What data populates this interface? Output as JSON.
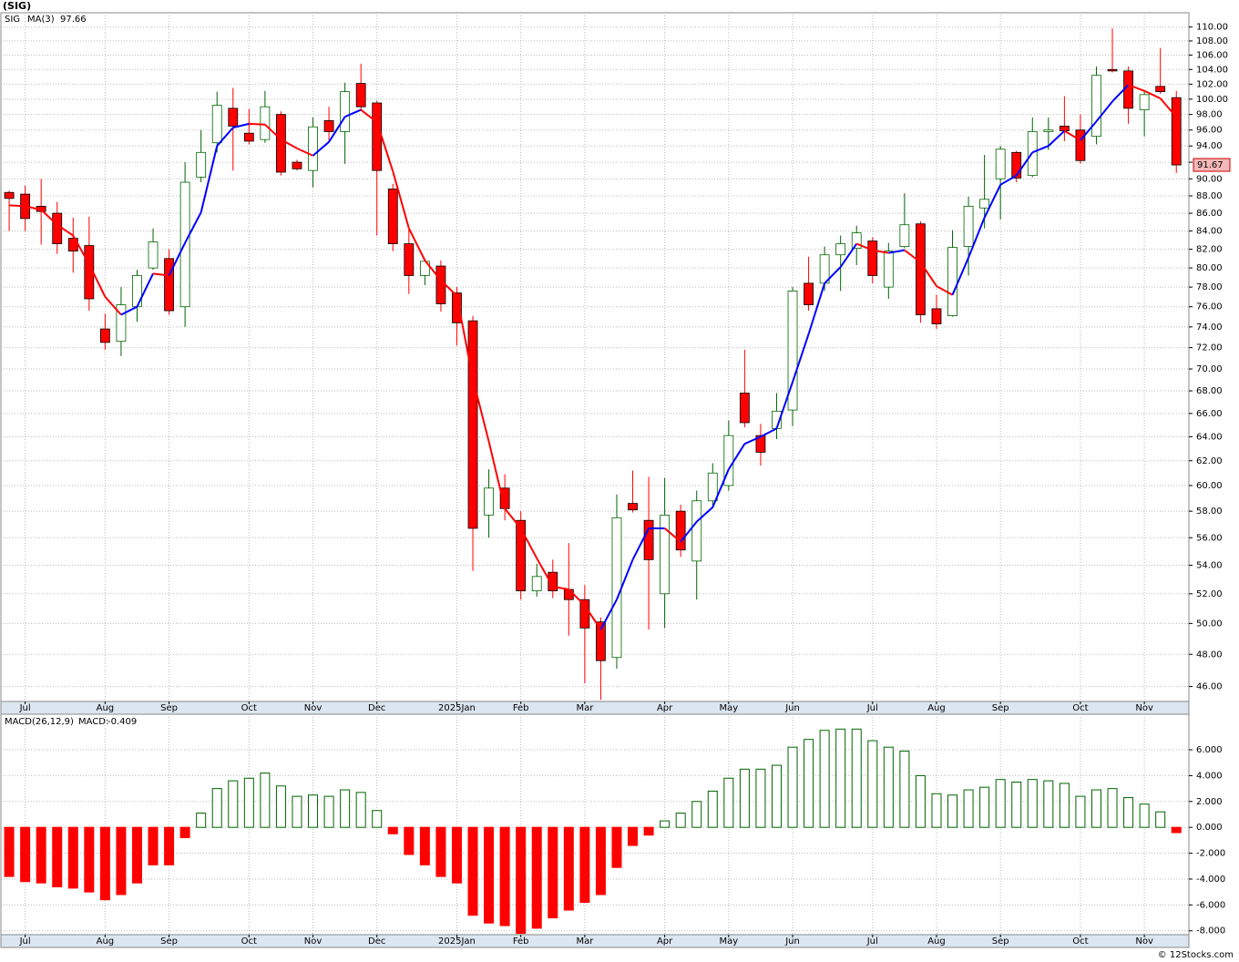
{
  "chart_data": [
    {
      "type": "candlestick",
      "title": "(SIG)",
      "log_scale": true,
      "grid": true,
      "categories": [
        null,
        "Jul",
        null,
        null,
        null,
        null,
        "Aug",
        null,
        null,
        null,
        "Sep",
        null,
        null,
        null,
        null,
        "Oct",
        null,
        null,
        null,
        "Nov",
        null,
        null,
        null,
        "Dec",
        null,
        null,
        null,
        null,
        "2025Jan",
        null,
        null,
        null,
        "Feb",
        null,
        null,
        null,
        "Mar",
        null,
        null,
        null,
        null,
        "Apr",
        null,
        null,
        null,
        "May",
        null,
        null,
        null,
        "Jun",
        null,
        null,
        null,
        null,
        "Jul",
        null,
        null,
        null,
        "Aug",
        null,
        null,
        null,
        "Sep",
        null,
        null,
        null,
        null,
        "Oct",
        null,
        null,
        null,
        "Nov",
        null,
        null
      ],
      "series": [
        {
          "name": "SIG",
          "up_color": "#006400",
          "down_color": "#ff0000",
          "open": [
            88.4,
            88.2,
            86.8,
            86,
            83.2,
            82.4,
            73.8,
            72.6,
            76,
            80,
            81,
            76,
            90.2,
            94.4,
            98.8,
            95.6,
            94.8,
            98,
            92,
            91,
            97.2,
            95.8,
            102.1,
            99.5,
            88.8,
            82.6,
            79.2,
            80.2,
            77.4,
            74.6,
            57.7,
            59.8,
            57.3,
            52.2,
            53.5,
            52.3,
            51.6,
            50.1,
            47.8,
            58.6,
            57.3,
            52,
            58,
            54.3,
            58.8,
            60,
            67.8,
            64.1,
            64.7,
            66.3,
            78.4,
            78.4,
            81.4,
            82.1,
            82.9,
            78,
            82.3,
            84.8,
            75.8,
            75.1,
            82.3,
            86.6,
            90,
            93.2,
            90.4,
            95.8,
            96.5,
            96,
            95.2,
            104,
            103.8,
            98.6,
            101.7,
            100.2
          ],
          "high": [
            88.6,
            89.2,
            90,
            87.3,
            85.5,
            85.6,
            75.3,
            78,
            79.8,
            84.3,
            82,
            92,
            96,
            101,
            101.5,
            98.7,
            101.1,
            98.4,
            92.3,
            97.6,
            99,
            102.2,
            104.8,
            99.8,
            89.4,
            84.2,
            81,
            80.8,
            78,
            75.1,
            61.3,
            60.9,
            58,
            54.1,
            54.4,
            55.6,
            52.6,
            50.4,
            59.3,
            61.2,
            60.7,
            60.6,
            58.5,
            59.6,
            61.8,
            65.4,
            71.8,
            65.1,
            67.8,
            78,
            81.2,
            82.3,
            83.5,
            84.6,
            83.3,
            82.7,
            88.3,
            85.1,
            77.2,
            84.1,
            87.9,
            92.9,
            94,
            93.4,
            97.6,
            97.6,
            100.4,
            98,
            104.4,
            109.8,
            104.4,
            101.1,
            107,
            101.1
          ],
          "low": [
            84,
            84,
            82.5,
            81.5,
            79.5,
            75.6,
            71.8,
            71.2,
            74.5,
            79.8,
            75.2,
            74,
            89.6,
            93.2,
            91,
            94.2,
            94.4,
            90.4,
            91,
            89,
            94.4,
            91.8,
            98.6,
            83.5,
            81.8,
            77.3,
            78.2,
            75.5,
            72.2,
            53.6,
            56,
            57.3,
            51.6,
            51.8,
            51.7,
            49.2,
            46.2,
            45.2,
            47.1,
            57.9,
            49.6,
            49.7,
            54.6,
            51.6,
            58.2,
            59.6,
            64.8,
            61.6,
            63.8,
            64.9,
            75.6,
            77.6,
            77.6,
            80.3,
            78.4,
            76.8,
            82.1,
            74.4,
            73.8,
            75,
            79.2,
            84.3,
            85.3,
            89.6,
            90.2,
            93.5,
            94.6,
            91.8,
            94.2,
            103.6,
            96.8,
            95.2,
            100.7,
            90.7
          ],
          "close": [
            87.7,
            85.4,
            86.2,
            82.6,
            81.8,
            76.8,
            72.5,
            76.2,
            79.2,
            82.8,
            75.6,
            89.6,
            93.2,
            99.2,
            96.5,
            94.6,
            99,
            90.8,
            91.2,
            96.4,
            95.8,
            101,
            99,
            91,
            82.6,
            79.2,
            80.7,
            76.3,
            74.4,
            56.7,
            59.8,
            58.2,
            52.2,
            53.2,
            52.2,
            51.6,
            49.7,
            47.6,
            57.5,
            58.1,
            54.4,
            57.7,
            55.1,
            58.8,
            61,
            64.1,
            65.2,
            62.7,
            66.2,
            77.6,
            76.2,
            81.4,
            82.6,
            83.8,
            79.2,
            81.8,
            84.7,
            75.2,
            74.3,
            82.2,
            86.8,
            87.6,
            93.6,
            90.1,
            95.8,
            96,
            95.9,
            92.2,
            103.2,
            103.8,
            98.8,
            100.6,
            101,
            91.67
          ]
        },
        {
          "name": "MA(3)",
          "up_color": "#0000ff",
          "down_color": "#ff0000",
          "values": [
            86.9,
            86.8,
            86.4,
            84.7,
            83.5,
            80.4,
            77,
            75.2,
            76,
            79.4,
            79.2,
            82.7,
            86.1,
            94,
            96.3,
            96.8,
            96.7,
            94.8,
            93.7,
            92.8,
            94.5,
            97.7,
            98.6,
            97,
            90.9,
            84.3,
            80.8,
            78.7,
            77.1,
            69.1,
            63.6,
            58.2,
            56.7,
            54.5,
            52.5,
            52.3,
            51.2,
            49.6,
            51.6,
            54.4,
            56.7,
            56.7,
            55.7,
            57.2,
            58.3,
            61.3,
            63.4,
            64,
            64.7,
            68.8,
            73.3,
            78.4,
            80.1,
            82.6,
            81.9,
            81.6,
            81.9,
            80.6,
            78.1,
            77.2,
            81.1,
            85.5,
            89.3,
            90.4,
            93.2,
            94,
            95.9,
            94.7,
            97.1,
            99.7,
            101.9,
            101.1,
            100.1,
            97.66
          ]
        }
      ],
      "ylim": [
        45.1,
        112.1
      ],
      "yticks": [
        {
          "value": 46,
          "label": "46.00"
        },
        {
          "value": 48,
          "label": "48.00"
        },
        {
          "value": 50,
          "label": "50.00"
        },
        {
          "value": 52,
          "label": "52.00"
        },
        {
          "value": 54,
          "label": "54.00"
        },
        {
          "value": 56,
          "label": "56.00"
        },
        {
          "value": 58,
          "label": "58.00"
        },
        {
          "value": 60,
          "label": "60.00"
        },
        {
          "value": 62,
          "label": "62.00"
        },
        {
          "value": 64,
          "label": "64.00"
        },
        {
          "value": 66,
          "label": "66.00"
        },
        {
          "value": 68,
          "label": "68.00"
        },
        {
          "value": 70,
          "label": "70.00"
        },
        {
          "value": 72,
          "label": "72.00"
        },
        {
          "value": 74,
          "label": "74.00"
        },
        {
          "value": 76,
          "label": "76.00"
        },
        {
          "value": 78,
          "label": "78.00"
        },
        {
          "value": 80,
          "label": "80.00"
        },
        {
          "value": 82,
          "label": "82.00"
        },
        {
          "value": 84,
          "label": "84.00"
        },
        {
          "value": 86,
          "label": "86.00"
        },
        {
          "value": 88,
          "label": "88.00"
        },
        {
          "value": 90,
          "label": "90.00"
        },
        {
          "value": 92,
          "label": "92.00"
        },
        {
          "value": 94,
          "label": "94.00"
        },
        {
          "value": 96,
          "label": "96.00"
        },
        {
          "value": 98,
          "label": "98.00"
        },
        {
          "value": 100,
          "label": "100.00"
        },
        {
          "value": 102,
          "label": "102.00"
        },
        {
          "value": 104,
          "label": "104.00"
        },
        {
          "value": 106,
          "label": "106.00"
        },
        {
          "value": 108,
          "label": "108.00"
        },
        {
          "value": 110,
          "label": "110.00"
        }
      ]
    },
    {
      "type": "bar",
      "title": "MACD(26,12,9)",
      "grid": true,
      "categories": [
        null,
        "Jul",
        null,
        null,
        null,
        null,
        "Aug",
        null,
        null,
        null,
        "Sep",
        null,
        null,
        null,
        null,
        "Oct",
        null,
        null,
        null,
        "Nov",
        null,
        null,
        null,
        "Dec",
        null,
        null,
        null,
        null,
        "2025Jan",
        null,
        null,
        null,
        "Feb",
        null,
        null,
        null,
        "Mar",
        null,
        null,
        null,
        null,
        "Apr",
        null,
        null,
        null,
        "May",
        null,
        null,
        null,
        "Jun",
        null,
        null,
        null,
        null,
        "Jul",
        null,
        null,
        null,
        "Aug",
        null,
        null,
        null,
        "Sep",
        null,
        null,
        null,
        null,
        "Oct",
        null,
        null,
        null,
        "Nov",
        null,
        null
      ],
      "series": [
        {
          "name": "MACD:",
          "up_color": "#006400",
          "down_color": "#ff0000",
          "values": [
            -3.8,
            -4.2,
            -4.3,
            -4.6,
            -4.7,
            -5,
            -5.6,
            -5.2,
            -4.3,
            -2.9,
            -2.9,
            -0.8,
            1.1,
            3,
            3.6,
            3.8,
            4.2,
            3.2,
            2.4,
            2.5,
            2.4,
            2.9,
            2.7,
            1.3,
            -0.5,
            -2.1,
            -2.9,
            -3.8,
            -4.3,
            -6.8,
            -7.4,
            -7.6,
            -8.2,
            -7.8,
            -7,
            -6.4,
            -5.8,
            -5.2,
            -3.1,
            -1.4,
            -0.6,
            0.5,
            1.1,
            2,
            2.8,
            3.8,
            4.5,
            4.5,
            4.8,
            6.2,
            6.8,
            7.5,
            7.6,
            7.6,
            6.7,
            6.2,
            5.9,
            4,
            2.6,
            2.5,
            2.9,
            3.1,
            3.7,
            3.5,
            3.7,
            3.6,
            3.4,
            2.4,
            2.9,
            3,
            2.3,
            1.8,
            1.2,
            -0.409
          ]
        }
      ],
      "ylim": [
        -8.3,
        8.75
      ],
      "yticks": [
        {
          "value": -8,
          "label": "-8.000"
        },
        {
          "value": -6,
          "label": "-6.000"
        },
        {
          "value": -4,
          "label": "-4.000"
        },
        {
          "value": -2,
          "label": "-2.000"
        },
        {
          "value": 0,
          "label": "0.000"
        },
        {
          "value": 2,
          "label": "2.000"
        },
        {
          "value": 4,
          "label": "4.000"
        },
        {
          "value": 6,
          "label": "6.000"
        }
      ]
    }
  ],
  "footer": "© 12Stocks.com"
}
